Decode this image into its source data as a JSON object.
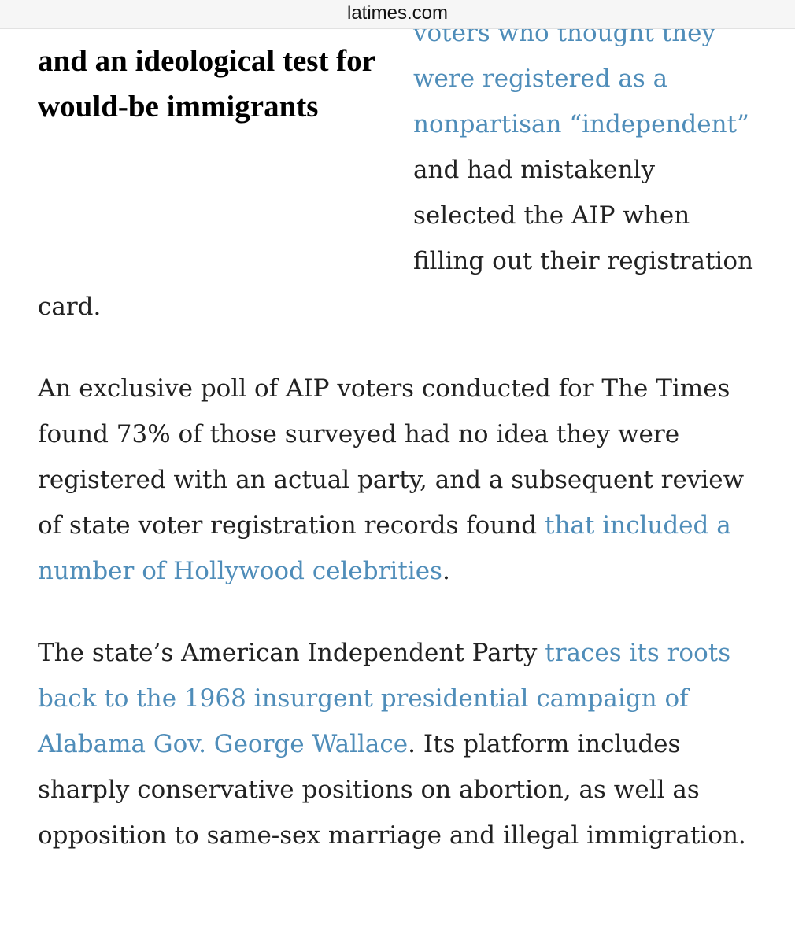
{
  "browser_bar": {
    "url": "latimes.com"
  },
  "pull_quote": "and an ideological test for would-be immigrants",
  "paragraphs": [
    {
      "segments": [
        {
          "text": "voters who thought they were registered as a nonpartisan “independent”",
          "link": true
        },
        {
          "text": " and had mistakenly selected the AIP when filling out their registration card.",
          "link": false
        }
      ]
    },
    {
      "segments": [
        {
          "text": "An exclusive poll of AIP voters conducted for The Times found 73% of those surveyed had no idea they were registered with an actual party, and a subsequent review of state voter registration records found ",
          "link": false
        },
        {
          "text": "that included a number of Hollywood celebrities",
          "link": true
        },
        {
          "text": ".",
          "link": false
        }
      ]
    },
    {
      "segments": [
        {
          "text": "The state’s American Independent Party ",
          "link": false
        },
        {
          "text": "traces its roots back to the 1968 insurgent presidential campaign of Alabama Gov. George Wallace",
          "link": true
        },
        {
          "text": ". Its platform includes sharply conservative positions on abortion, as well as opposition to same-sex marriage and illegal immigration.",
          "link": false
        }
      ]
    }
  ]
}
